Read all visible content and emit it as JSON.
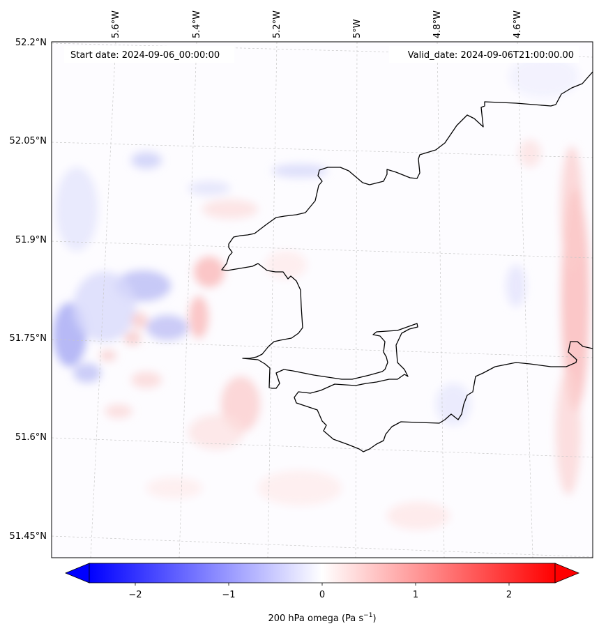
{
  "header": {
    "start_date": "Start date: 2024-09-06_00:00:00",
    "valid_date": "Valid_date: 2024-09-06T21:00:00.00"
  },
  "map": {
    "lon_labels": [
      "5.6°W",
      "5.4°W",
      "5.2°W",
      "5°W",
      "4.8°W",
      "4.6°W"
    ],
    "lat_labels": [
      "52.2°N",
      "52.05°N",
      "51.9°N",
      "51.75°N",
      "51.6°N",
      "51.45°N"
    ],
    "coastline_color": "#000000",
    "gridline_color": "#c8c8c8"
  },
  "colorbar": {
    "colormap": "bwr",
    "range": [
      -2.5,
      2.5
    ],
    "extend": "both",
    "ticks": [
      "−2",
      "−1",
      "0",
      "1",
      "2"
    ],
    "label": "200 hPa omega (Pa s",
    "label_sup": "−1",
    "label_end": ")"
  },
  "colors": {
    "negative": "#0000ff",
    "neutral": "#ffffff",
    "positive": "#ff0000"
  }
}
